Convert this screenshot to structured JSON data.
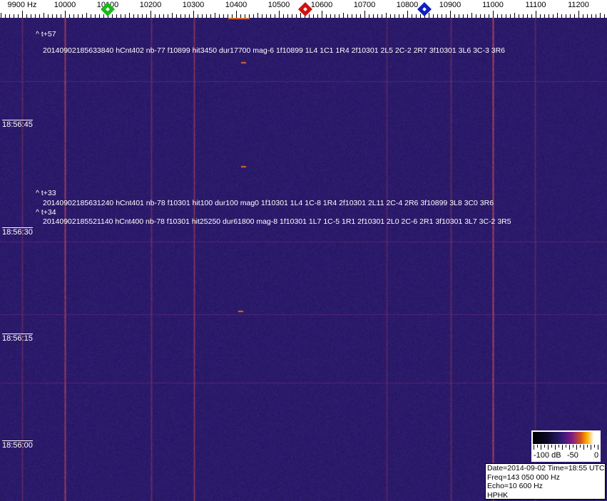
{
  "ruler": {
    "labels": [
      "9900 Hz",
      "10000",
      "10100",
      "10200",
      "10300",
      "10400",
      "10500",
      "10600",
      "10700",
      "10800",
      "10900",
      "11000",
      "11100",
      "11200"
    ],
    "markers": [
      {
        "name": "green",
        "freq": 10100,
        "color": "#1db81d"
      },
      {
        "name": "red",
        "freq": 10560,
        "color": "#d01010"
      },
      {
        "name": "blue",
        "freq": 10840,
        "color": "#1020c0"
      }
    ]
  },
  "overlays": {
    "event1_label": "^ t+57",
    "event1_text": "20140902185633840 hCnt402 nb-77 f10899 hit3450 dur17700 mag-6 1f10899 1L4 1C1 1R4 2f10301 2L5 2C-2 2R7 3f10301 3L6 3C-3 3R6",
    "event2_label": "^ t+33",
    "event2_text": "20140902185631240 hCnt401 nb-78 f10301 hit100 dur100 mag0 1f10301 1L4 1C-8 1R4 2f10301 2L11 2C-4 2R6 3f10899 3L8 3C0 3R6",
    "event3_label": "^ t+34",
    "event3_text": "20140902185521140 hCnt400 nb-78 f10301 hit25250 dur61800 mag-8 1f10301 1L7 1C-5 1R1 2f10301 2L0 2C-6 2R1 3f10301 3L7 3C-2 3R5"
  },
  "times": [
    "18:56:45",
    "18:56:30",
    "18:56:15",
    "18:56:00"
  ],
  "colorbar": {
    "labels": [
      "-100 dB",
      "-50",
      "0"
    ]
  },
  "info": {
    "line1": "Date=2014-09-02 Time=18:55 UTC",
    "line2": "Freq=143 050 000 Hz",
    "line3": "Echo=10 600 Hz",
    "line4": "HPHK"
  },
  "colors": {
    "background": "#24206a",
    "carrier": "#e0602a"
  }
}
